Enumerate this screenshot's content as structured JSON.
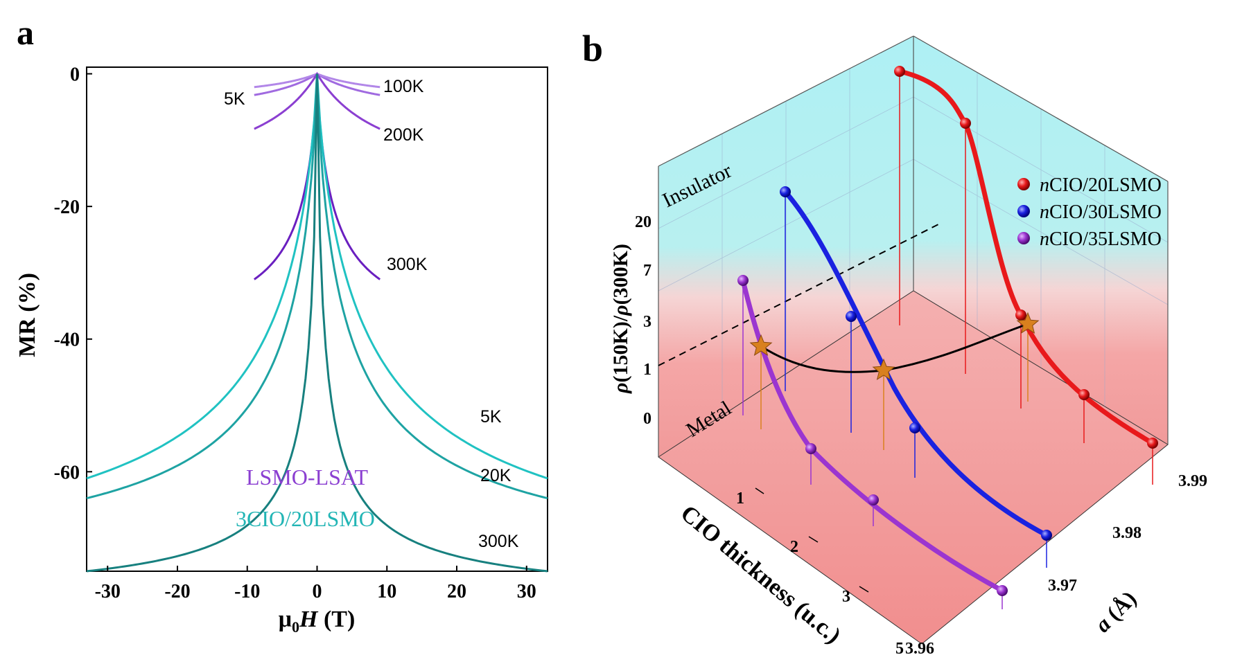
{
  "panel_labels": {
    "a": "a",
    "b": "b"
  },
  "chart_data": [
    {
      "type": "line",
      "panel": "a",
      "xlabel_prefix": "μ",
      "xlabel_sub": "0",
      "xlabel_var": "H",
      "xlabel_unit": " (T)",
      "ylabel": "MR (%)",
      "xlim": [
        -33,
        33
      ],
      "ylim": [
        -75,
        1
      ],
      "xticks": [
        -30,
        -20,
        -10,
        0,
        10,
        20,
        30
      ],
      "yticks": [
        0,
        -20,
        -40,
        -60
      ],
      "colors": {
        "lsmo_lsat": "#8b3fd1",
        "cio": "#22b5b5",
        "cio_dark": "#17807f"
      },
      "legend_text": [
        {
          "text": "LSMO-LSAT",
          "color": "#8b3fd1"
        },
        {
          "text": "3CIO/20LSMO",
          "color": "#22b5b5"
        }
      ],
      "series": [
        {
          "group": "LSMO-LSAT",
          "temp": "5K",
          "color": "#a06ae0",
          "xmax": 9,
          "k": 0.1,
          "p": 1.0,
          "end": -3.2
        },
        {
          "group": "LSMO-LSAT",
          "temp": "100K",
          "color": "#b287e8",
          "xmax": 9,
          "k": 0.1,
          "p": 1.0,
          "end": -2.0
        },
        {
          "group": "LSMO-LSAT",
          "temp": "200K",
          "color": "#8b3fd1",
          "xmax": 9,
          "k": 0.1,
          "p": 1.0,
          "end": -8.3
        },
        {
          "group": "LSMO-LSAT",
          "temp": "300K",
          "color": "#6a1fc0",
          "xmax": 9,
          "k": 0.45,
          "p": 0.85,
          "end": -31
        },
        {
          "group": "3CIO/20LSMO",
          "temp": "5K",
          "color": "#20c2c2",
          "xmax": 33,
          "k": 0.2,
          "p": 0.8,
          "end": -61
        },
        {
          "group": "3CIO/20LSMO",
          "temp": "20K",
          "color": "#1ea3a3",
          "xmax": 33,
          "k": 0.3,
          "p": 0.8,
          "end": -64
        },
        {
          "group": "3CIO/20LSMO",
          "temp": "300K",
          "color": "#17807f",
          "xmax": 33,
          "k": 0.9,
          "p": 0.8,
          "end": -75
        }
      ],
      "temp_labels": [
        "5K",
        "100K",
        "200K",
        "300K",
        "5K",
        "20K",
        "300K"
      ]
    },
    {
      "type": "scatter",
      "panel": "b",
      "zlabel_parts": [
        "ρ",
        "(150K)/",
        "ρ",
        "(300K)"
      ],
      "xlabel": "CIO thickness (u.c.)",
      "ylabel_var": "a",
      "ylabel_unit": " (Å)",
      "zticks": [
        "20",
        "7",
        "3",
        "1",
        "0"
      ],
      "xticks": [
        "1",
        "2",
        "3",
        "5"
      ],
      "yticks": [
        "3.99",
        "3.98",
        "3.97",
        "3.96"
      ],
      "region_labels": {
        "insulator": "Insulator",
        "metal": "Metal"
      },
      "legend": [
        {
          "label_italic": "n",
          "label": "CIO/20LSMO",
          "color": "#e8191b"
        },
        {
          "label_italic": "n",
          "label": "CIO/30LSMO",
          "color": "#1a22e0"
        },
        {
          "label_italic": "n",
          "label": "CIO/35LSMO",
          "color": "#9b35d0"
        }
      ],
      "series": [
        {
          "name": "nCIO/20LSMO",
          "color": "#e8191b"
        },
        {
          "name": "nCIO/30LSMO",
          "color": "#1a22e0"
        },
        {
          "name": "nCIO/35LSMO",
          "color": "#9b35d0"
        }
      ],
      "transition_color": "#d9801e"
    }
  ]
}
